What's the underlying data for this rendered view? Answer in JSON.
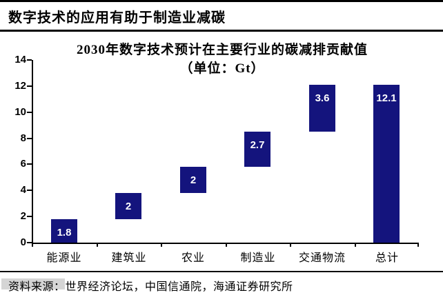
{
  "page": {
    "header_title": "数字技术的应用有助于制造业减碳",
    "source_note": "资料来源：世界经济论坛，中国信通院，海通证券研究所"
  },
  "chart_data": {
    "type": "bar",
    "subtype": "waterfall",
    "title": "2030年数字技术预计在主要行业的碳减排贡献值",
    "subtitle": "（单位：Gt）",
    "unit": "Gt",
    "categories": [
      "能源业",
      "建筑业",
      "农业",
      "制造业",
      "交通物流",
      "总计"
    ],
    "values": [
      1.8,
      2,
      2,
      2.7,
      3.6,
      12.1
    ],
    "value_labels": [
      "1.8",
      "2",
      "2",
      "2.7",
      "3.6",
      "12.1"
    ],
    "bar_start": [
      0,
      1.8,
      3.8,
      5.8,
      8.5,
      0
    ],
    "bar_end": [
      1.8,
      3.8,
      5.8,
      8.5,
      12.1,
      12.1
    ],
    "ylim": [
      0,
      14
    ],
    "yticks": [
      0,
      2,
      4,
      6,
      8,
      10,
      12,
      14
    ],
    "grid": false,
    "legend": false,
    "bar_color": "#14147d",
    "value_label_color": "#ffffff",
    "axis_color": "#000000"
  }
}
